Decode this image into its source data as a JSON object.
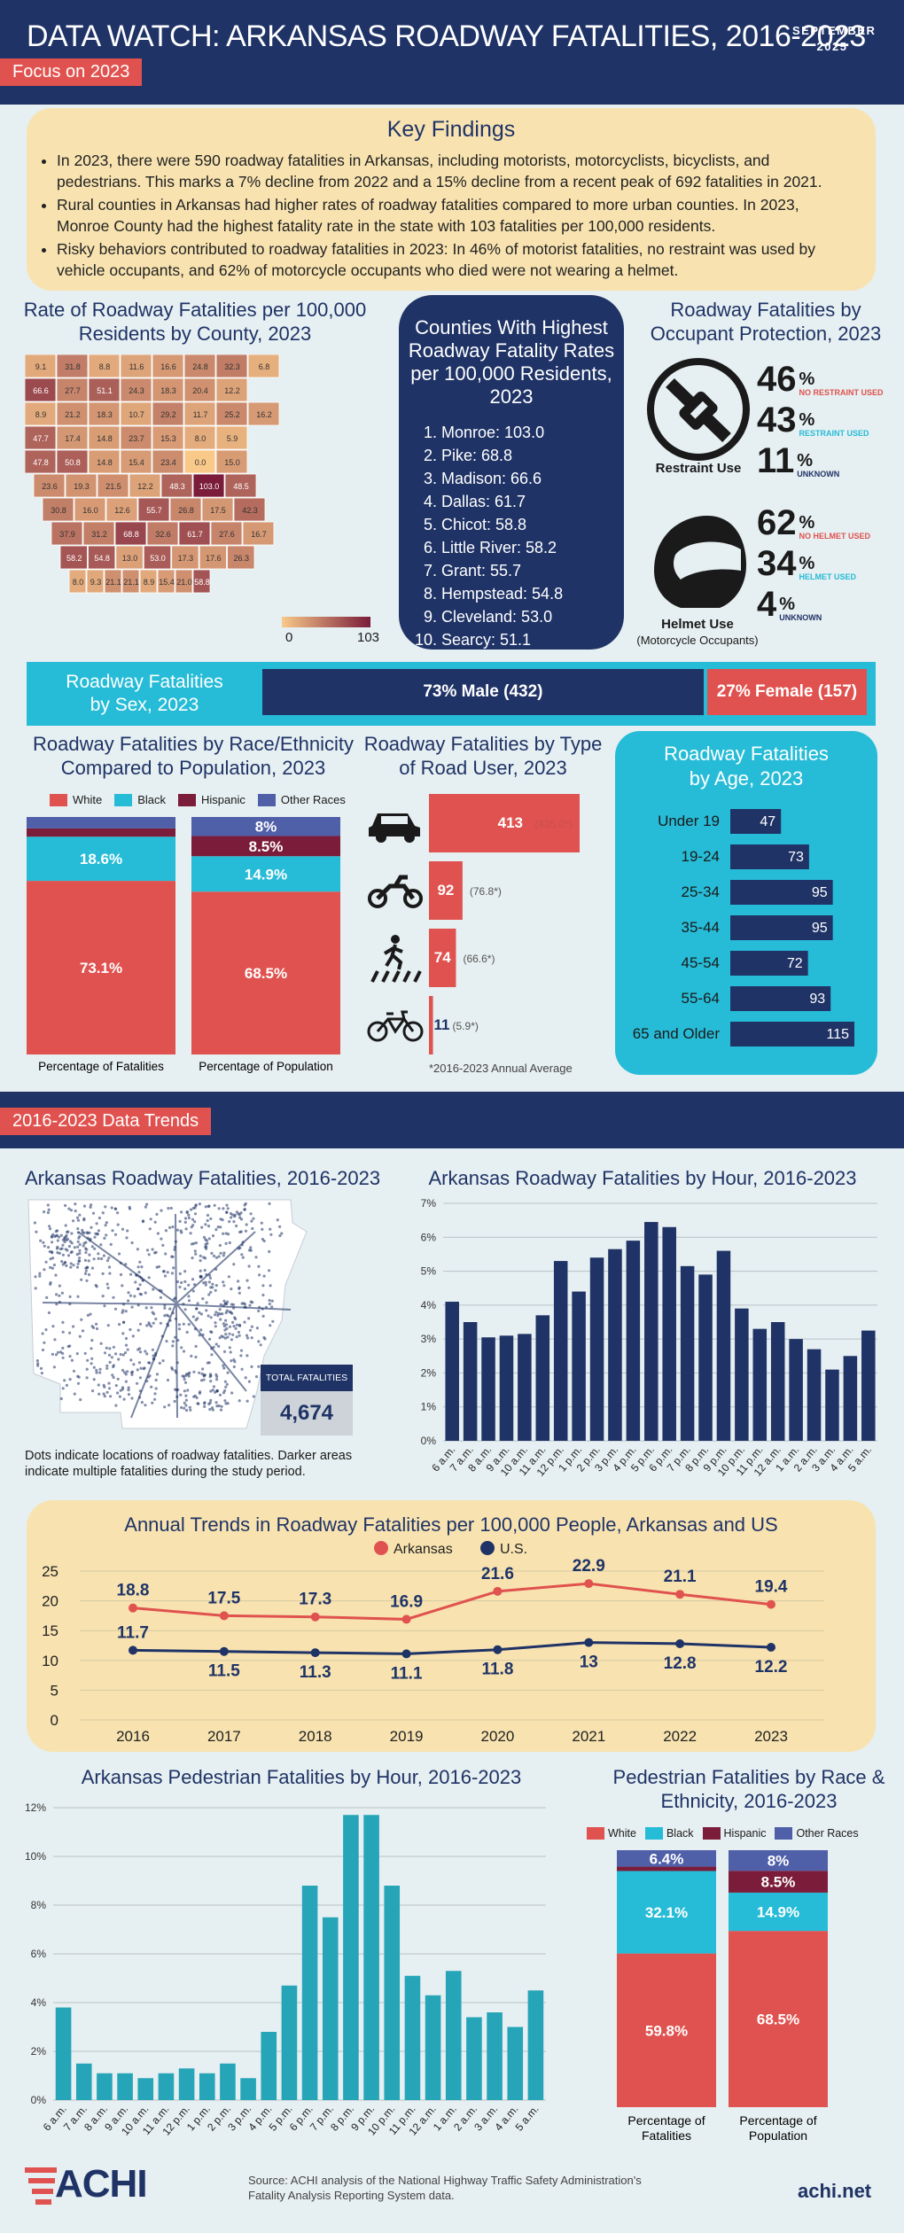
{
  "header": {
    "title": "DATA WATCH: ARKANSAS ROADWAY FATALITIES, 2016-2023",
    "date_month": "SEPTEMBER",
    "date_year": "2025",
    "focus_tag": "Focus on 2023",
    "trends_tag": "2016-2023 Data Trends"
  },
  "key_findings": {
    "title": "Key Findings",
    "items": [
      "In 2023, there were 590 roadway fatalities in Arkansas, including motorists, motorcyclists, bicyclists, and pedestrians. This marks a 7% decline from 2022 and a 15% decline from a recent peak of 692 fatalities in 2021.",
      "Rural counties in Arkansas had higher rates of roadway fatalities compared to more urban counties. In 2023, Monroe County had the highest fatality rate in the state with 103 fatalities per 100,000 residents.",
      "Risky behaviors contributed to roadway fatalities in 2023: In 46% of motorist fatalities, no restraint was used by vehicle occupants, and 62% of motorcycle occupants who died were not wearing a helmet."
    ]
  },
  "county_map": {
    "title": "Rate of Roadway Fatalities per 100,000 Residents by County, 2023",
    "legend_min": "0",
    "legend_max": "103",
    "color_low": "#f9c98a",
    "color_high": "#7a1c3a",
    "labels": [
      "9.1",
      "31.8",
      "8.8",
      "11.6",
      "16.6",
      "24.8",
      "32.3",
      "6.8",
      "66.6",
      "27.7",
      "51.1",
      "24.3",
      "18.3",
      "20.4",
      "12.2",
      "8.9",
      "21.2",
      "18.3",
      "10.7",
      "29.2",
      "11.7",
      "25.2",
      "16.2",
      "47.7",
      "17.4",
      "14.8",
      "23.7",
      "15.3",
      "8.0",
      "5.9",
      "47.8",
      "50.8",
      "14.8",
      "15.4",
      "23.4",
      "0.0",
      "15.0",
      "23.6",
      "19.3",
      "21.5",
      "12.2",
      "48.3",
      "103.0",
      "48.5",
      "30.8",
      "16.0",
      "12.6",
      "55.7",
      "26.8",
      "17.5",
      "42.3",
      "37.9",
      "31.2",
      "68.8",
      "32.6",
      "61.7",
      "27.6",
      "16.7",
      "58.2",
      "54.8",
      "13.0",
      "53.0",
      "17.3",
      "17.6",
      "26.3",
      "8.0",
      "9.3",
      "21.1",
      "21.1",
      "8.9",
      "15.4",
      "21.0",
      "58.8"
    ]
  },
  "top_counties": {
    "title": "Counties With Highest Roadway Fatality Rates per 100,000 Residents, 2023",
    "items": [
      "Monroe: 103.0",
      "Pike: 68.8",
      "Madison: 66.6",
      "Dallas: 61.7",
      "Chicot: 58.8",
      "Little River: 58.2",
      "Grant: 55.7",
      "Hempstead: 54.8",
      "Cleveland: 53.0",
      "Searcy: 51.1"
    ]
  },
  "occupant_protection": {
    "title": "Roadway Fatalities by Occupant Protection, 2023",
    "restraint": {
      "label": "Restraint Use",
      "items": [
        {
          "value": "46",
          "unit": "%",
          "label": "NO RESTRAINT USED",
          "color": "#e0524f"
        },
        {
          "value": "43",
          "unit": "%",
          "label": "RESTRAINT USED",
          "color": "#26bcd7"
        },
        {
          "value": "11",
          "unit": "%",
          "label": "UNKNOWN",
          "color": "#1f3366"
        }
      ]
    },
    "helmet": {
      "label": "Helmet Use",
      "sublabel": "(Motorcycle Occupants)",
      "items": [
        {
          "value": "62",
          "unit": "%",
          "label": "NO HELMET USED",
          "color": "#e0524f"
        },
        {
          "value": "34",
          "unit": "%",
          "label": "HELMET USED",
          "color": "#26bcd7"
        },
        {
          "value": "4",
          "unit": "%",
          "label": "UNKNOWN",
          "color": "#1f3366"
        }
      ]
    }
  },
  "sex": {
    "title_line1": "Roadway Fatalities",
    "title_line2": "by Sex, 2023",
    "male_label": "73% Male (432)",
    "female_label": "27% Female (157)",
    "male_pct": 73,
    "female_pct": 27
  },
  "race": {
    "title": "Roadway Fatalities by Race/Ethnicity Compared to Population, 2023",
    "legend": [
      "White",
      "Black",
      "Hispanic",
      "Other Races"
    ],
    "colors": [
      "#e0524f",
      "#26bcd7",
      "#7a1c3a",
      "#4f5fa8"
    ],
    "bars": [
      {
        "label": "Percentage of Fatalities",
        "values": [
          73.1,
          18.6,
          3.5,
          4.8
        ],
        "labels": [
          "73.1%",
          "18.6%",
          "",
          ""
        ]
      },
      {
        "label": "Percentage of Population",
        "values": [
          68.5,
          14.9,
          8.5,
          8
        ],
        "labels": [
          "68.5%",
          "14.9%",
          "8.5%",
          "8%"
        ]
      }
    ]
  },
  "road_user": {
    "title": "Roadway Fatalities by Type of Road User, 2023",
    "footnote": "*2016-2023 Annual Average",
    "items": [
      {
        "icon": "car-icon",
        "value": 413,
        "label": "413",
        "avg": "(435.0*)"
      },
      {
        "icon": "motorcycle-icon",
        "value": 92,
        "label": "92",
        "avg": "(76.8*)"
      },
      {
        "icon": "pedestrian-icon",
        "value": 74,
        "label": "74",
        "avg": "(66.6*)"
      },
      {
        "icon": "bicycle-icon",
        "value": 11,
        "label": "11",
        "avg": "(5.9*)"
      }
    ]
  },
  "age": {
    "title_line1": "Roadway Fatalities",
    "title_line2": "by Age, 2023",
    "items": [
      {
        "label": "Under 19",
        "value": 47
      },
      {
        "label": "19-24",
        "value": 73
      },
      {
        "label": "25-34",
        "value": 95
      },
      {
        "label": "35-44",
        "value": 95
      },
      {
        "label": "45-54",
        "value": 72
      },
      {
        "label": "55-64",
        "value": 93
      },
      {
        "label": "65 and Older",
        "value": 115
      }
    ]
  },
  "dot_map": {
    "title": "Arkansas Roadway Fatalities, 2016-2023",
    "total_label": "TOTAL FATALITIES",
    "total_value": "4,674",
    "caption": "Dots indicate locations of roadway fatalities. Darker areas indicate multiple fatalities during the study period."
  },
  "chart_data": [
    {
      "type": "bar",
      "title": "Arkansas Roadway Fatalities by Hour, 2016-2023",
      "categories": [
        "6 a.m.",
        "7 a.m.",
        "8 a.m.",
        "9 a.m.",
        "10 a.m.",
        "11 a.m.",
        "12 p.m.",
        "1 p.m.",
        "2 p.m.",
        "3 p.m.",
        "4 p.m.",
        "5 p.m.",
        "6 p.m.",
        "7 p.m.",
        "8 p.m.",
        "9 p.m.",
        "10 p.m.",
        "11 p.m.",
        "12 a.m.",
        "1 a.m.",
        "2 a.m.",
        "3 a.m.",
        "4 a.m.",
        "5 a.m."
      ],
      "values": [
        4.1,
        3.5,
        3.05,
        3.1,
        3.15,
        3.7,
        5.3,
        4.4,
        5.4,
        5.65,
        5.9,
        6.45,
        6.3,
        5.15,
        4.9,
        5.6,
        3.9,
        3.3,
        3.5,
        3.0,
        2.7,
        2.1,
        2.5,
        3.25
      ],
      "ylim": [
        0,
        7
      ],
      "yticks": [
        "0%",
        "1%",
        "2%",
        "3%",
        "4%",
        "5%",
        "6%",
        "7%"
      ],
      "color": "#1f3366"
    },
    {
      "type": "line",
      "title": "Annual Trends in Roadway Fatalities per 100,000 People, Arkansas and US",
      "categories": [
        "2016",
        "2017",
        "2018",
        "2019",
        "2020",
        "2021",
        "2022",
        "2023"
      ],
      "series": [
        {
          "name": "Arkansas",
          "values": [
            18.8,
            17.5,
            17.3,
            16.9,
            21.6,
            22.9,
            21.1,
            19.4
          ],
          "labels": [
            "18.8",
            "17.5",
            "17.3",
            "16.9",
            "21.6",
            "22.9",
            "21.1",
            "19.4"
          ],
          "color": "#e0524f"
        },
        {
          "name": "U.S.",
          "values": [
            11.7,
            11.5,
            11.3,
            11.1,
            11.8,
            13,
            12.8,
            12.2
          ],
          "labels": [
            "11.7",
            "11.5",
            "11.3",
            "11.1",
            "11.8",
            "13",
            "12.8",
            "12.2"
          ],
          "color": "#1f3366"
        }
      ],
      "ylim": [
        0,
        25
      ],
      "yticks": [
        "0",
        "5",
        "10",
        "15",
        "20",
        "25"
      ],
      "legend": "top-center"
    },
    {
      "type": "bar",
      "title": "Arkansas Pedestrian Fatalities by Hour, 2016-2023",
      "categories": [
        "6 a.m.",
        "7 a.m.",
        "8 a.m.",
        "9 a.m.",
        "10 a.m.",
        "11 a.m.",
        "12 p.m.",
        "1 p.m.",
        "2 p.m.",
        "3 p.m.",
        "4 p.m.",
        "5 p.m.",
        "6 p.m.",
        "7 p.m.",
        "8 p.m.",
        "9 p.m.",
        "10 p.m.",
        "11 p.m.",
        "12 a.m.",
        "1 a.m.",
        "2 a.m.",
        "3 a.m.",
        "4 a.m.",
        "5 a.m."
      ],
      "values": [
        3.8,
        1.5,
        1.1,
        1.1,
        0.9,
        1.1,
        1.3,
        1.1,
        1.5,
        0.9,
        2.8,
        4.7,
        8.8,
        7.5,
        11.7,
        11.7,
        8.8,
        5.1,
        4.3,
        5.3,
        3.4,
        3.6,
        3.0,
        4.5
      ],
      "ylim": [
        0,
        12
      ],
      "yticks": [
        "0%",
        "2%",
        "4%",
        "6%",
        "8%",
        "10%",
        "12%"
      ],
      "color": "#26a5b8"
    },
    {
      "type": "bar",
      "title": "Pedestrian Fatalities by Race & Ethnicity, 2016-2023",
      "legend": [
        "White",
        "Black",
        "Hispanic",
        "Other Races"
      ],
      "bars": [
        {
          "label": "Percentage of Fatalities",
          "values": [
            59.8,
            32.1,
            1.7,
            6.4
          ],
          "labels": [
            "59.8%",
            "32.1%",
            "",
            "6.4%"
          ]
        },
        {
          "label": "Percentage of Population",
          "values": [
            68.5,
            14.9,
            8.5,
            8
          ],
          "labels": [
            "68.5%",
            "14.9%",
            "8.5%",
            "8%"
          ]
        }
      ]
    }
  ],
  "footer": {
    "logo": "ACHI",
    "source": "Source: ACHI analysis of the National Highway Traffic Safety Administration's Fatality Analysis Reporting System data.",
    "url": "achi.net"
  }
}
